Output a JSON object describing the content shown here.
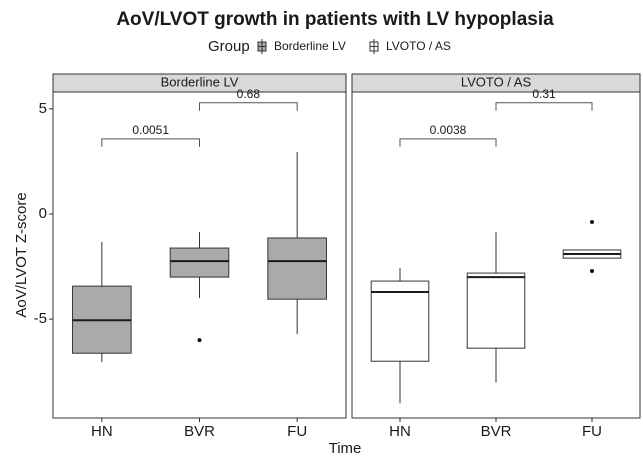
{
  "chart_data": {
    "type": "box",
    "title": "AoV/LVOT growth in patients with LV hypoplasia",
    "legend_title": "Group",
    "xlabel": "Time",
    "ylabel": "AoV/LVOT Z-score",
    "categories": [
      "HN",
      "BVR",
      "FU"
    ],
    "ylim": [
      -9.7,
      5.8
    ],
    "yticks": [
      5,
      0,
      -5
    ],
    "series": [
      {
        "name": "Borderline LV",
        "color": "#aaaaaa",
        "boxes": [
          {
            "min": -7.05,
            "q1": -6.62,
            "median": -5.05,
            "q3": -3.43,
            "max": -1.33,
            "outliers": []
          },
          {
            "min": -4.0,
            "q1": -3.0,
            "median": -2.24,
            "q3": -1.62,
            "max": -0.86,
            "outliers": [
              -6.0
            ]
          },
          {
            "min": -5.71,
            "q1": -4.05,
            "median": -2.24,
            "q3": -1.14,
            "max": 2.95,
            "outliers": []
          }
        ],
        "comparisons": [
          {
            "groups": [
              "HN",
              "BVR"
            ],
            "y": 3.57,
            "label": "0.0051"
          },
          {
            "groups": [
              "BVR",
              "FU"
            ],
            "y": 5.29,
            "label": "0.68"
          }
        ]
      },
      {
        "name": "LVOTO / AS",
        "color": "#ffffff",
        "boxes": [
          {
            "min": -9.0,
            "q1": -7.0,
            "median": -3.71,
            "q3": -3.19,
            "max": -2.57,
            "outliers": []
          },
          {
            "min": -8.0,
            "q1": -6.38,
            "median": -3.0,
            "q3": -2.81,
            "max": -0.86,
            "outliers": []
          },
          {
            "min": -2.1,
            "q1": -2.1,
            "median": -1.9,
            "q3": -1.71,
            "max": -1.71,
            "outliers": [
              -0.38,
              -2.71
            ]
          }
        ],
        "comparisons": [
          {
            "groups": [
              "HN",
              "BVR"
            ],
            "y": 3.57,
            "label": "0.0038"
          },
          {
            "groups": [
              "BVR",
              "FU"
            ],
            "y": 5.29,
            "label": "0.31"
          }
        ]
      }
    ]
  }
}
